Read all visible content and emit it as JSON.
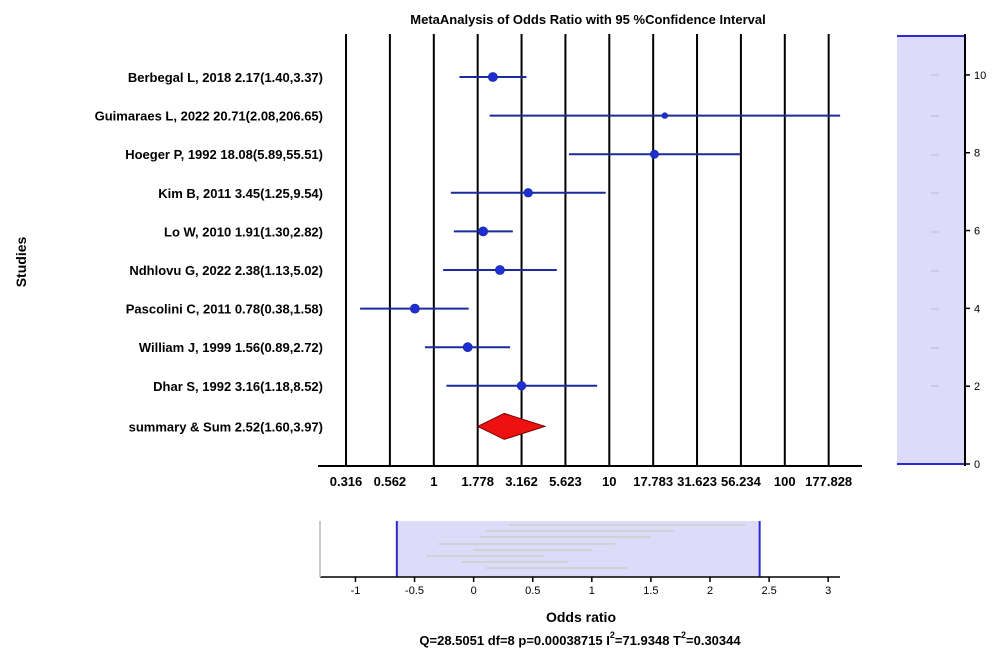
{
  "colors": {
    "ci_line": "#1b2a9c",
    "point": "#1f2fd6",
    "summary_fill": "#ee1111",
    "summary_stroke": "#7a0000",
    "panel_fill": "#dcdcfa",
    "panel_edge": "#2a2ad0",
    "grid": "#000000"
  },
  "chart_data": [
    {
      "type": "forest",
      "title": "MetaAnalysis of Odds Ratio with 95 %Confidence Interval",
      "ylabel": "Studies",
      "x_scale": "log10",
      "x_ticks": [
        "0.316",
        "0.562",
        "1",
        "1.778",
        "3.162",
        "5.623",
        "10",
        "17.783",
        "31.623",
        "56.234",
        "100",
        "177.828"
      ],
      "studies": [
        {
          "label": "Berbegal L, 2018  2.17(1.40,3.37)",
          "or": 2.17,
          "lower": 1.4,
          "upper": 3.37
        },
        {
          "label": "Guimaraes L, 2022 20.71(2.08,206.65)",
          "or": 20.71,
          "lower": 2.08,
          "upper": 206.65
        },
        {
          "label": "Hoeger P, 1992 18.08(5.89,55.51)",
          "or": 18.08,
          "lower": 5.89,
          "upper": 55.51
        },
        {
          "label": "Kim B, 2011 3.45(1.25,9.54)",
          "or": 3.45,
          "lower": 1.25,
          "upper": 9.54
        },
        {
          "label": "Lo W, 2010 1.91(1.30,2.82)",
          "or": 1.91,
          "lower": 1.3,
          "upper": 2.82
        },
        {
          "label": "Ndhlovu G, 2022 2.38(1.13,5.02)",
          "or": 2.38,
          "lower": 1.13,
          "upper": 5.02
        },
        {
          "label": "Pascolini C, 2011 0.78(0.38,1.58)",
          "or": 0.78,
          "lower": 0.38,
          "upper": 1.58
        },
        {
          "label": "William J, 1999 1.56(0.89,2.72)",
          "or": 1.56,
          "lower": 0.89,
          "upper": 2.72
        },
        {
          "label": "Dhar S, 1992 3.16(1.18,8.52)",
          "or": 3.16,
          "lower": 1.18,
          "upper": 8.52
        }
      ],
      "summary": {
        "label": "summary & Sum 2.52(1.60,3.97)",
        "or": 2.52,
        "lower": 1.6,
        "upper": 3.97
      }
    },
    {
      "type": "scale-panel",
      "side": "right",
      "y_ticks": [
        "0",
        "2",
        "4",
        "6",
        "8",
        "10"
      ],
      "ylim": [
        0,
        11
      ]
    },
    {
      "type": "scale-panel",
      "side": "bottom",
      "xlabel": "Odds ratio",
      "x_ticks": [
        "-1",
        "-0.5",
        "0",
        "0.5",
        "1",
        "1.5",
        "2",
        "2.5",
        "3"
      ],
      "xlim": [
        -1.3,
        3.1
      ],
      "band": [
        -0.65,
        2.42
      ]
    }
  ],
  "stats": {
    "text_main": "Q=28.5051 df=8 p=0.00038715 I",
    "sup_i": "2",
    "text_i": "=71.9348 T",
    "sup_t": "2",
    "text_t": "=0.30344"
  }
}
